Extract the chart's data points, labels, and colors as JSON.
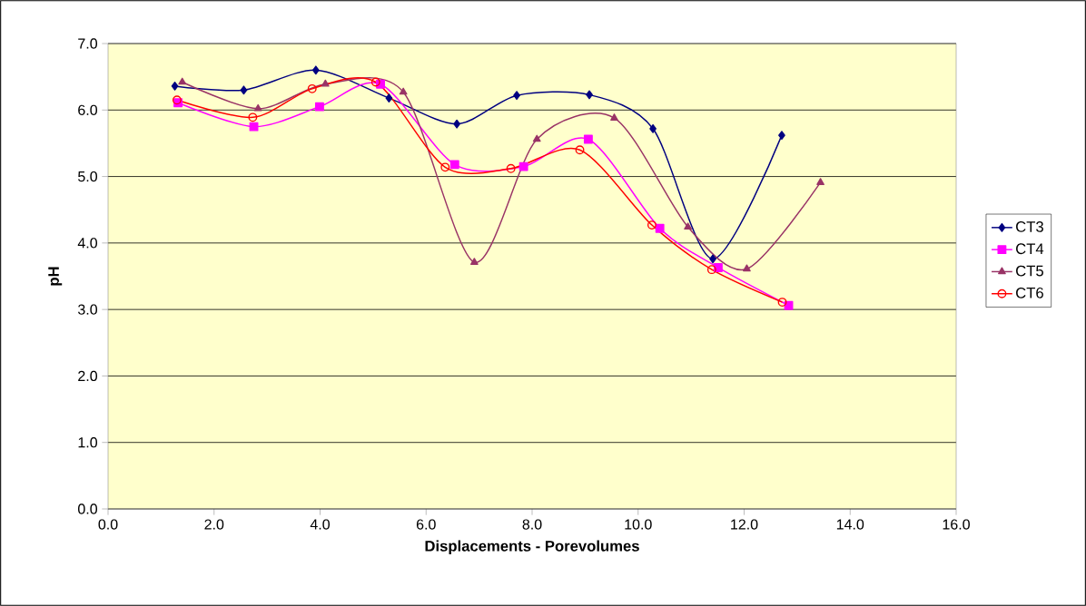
{
  "chart_data": {
    "type": "line",
    "xlabel": "Displacements - Porevolumes",
    "ylabel": "pH",
    "xlim": [
      0,
      16
    ],
    "ylim": [
      0,
      7
    ],
    "xticks": [
      {
        "value": 0,
        "label": "0.0"
      },
      {
        "value": 2,
        "label": "2.0"
      },
      {
        "value": 4,
        "label": "4.0"
      },
      {
        "value": 6,
        "label": "6.0"
      },
      {
        "value": 8,
        "label": "8.0"
      },
      {
        "value": 10,
        "label": "10.0"
      },
      {
        "value": 12,
        "label": "12.0"
      },
      {
        "value": 14,
        "label": "14.0"
      },
      {
        "value": 16,
        "label": "16.0"
      }
    ],
    "yticks": [
      {
        "value": 0,
        "label": "0.0"
      },
      {
        "value": 1,
        "label": "1.0"
      },
      {
        "value": 2,
        "label": "2.0"
      },
      {
        "value": 3,
        "label": "3.0"
      },
      {
        "value": 4,
        "label": "4.0"
      },
      {
        "value": 5,
        "label": "5.0"
      },
      {
        "value": 6,
        "label": "6.0"
      },
      {
        "value": 7,
        "label": "7.0"
      }
    ],
    "grid": "y",
    "legend": "right",
    "line_style": "solid",
    "series": [
      {
        "name": "CT3",
        "color": "#000080",
        "marker": "diamond",
        "x": [
          1.26,
          2.56,
          3.92,
          5.3,
          6.58,
          7.71,
          9.08,
          10.28,
          11.41,
          12.71
        ],
        "values": [
          6.36,
          6.3,
          6.6,
          6.18,
          5.79,
          6.22,
          6.23,
          5.72,
          3.76,
          5.62
        ]
      },
      {
        "name": "CT4",
        "color": "#ff00ff",
        "marker": "square",
        "x": [
          1.32,
          2.75,
          3.99,
          5.14,
          6.54,
          7.84,
          9.06,
          10.41,
          11.51,
          12.84
        ],
        "values": [
          6.11,
          5.75,
          6.05,
          6.39,
          5.18,
          5.15,
          5.56,
          4.22,
          3.63,
          3.06
        ]
      },
      {
        "name": "CT5",
        "color": "#993366",
        "marker": "triangle",
        "x": [
          1.4,
          2.83,
          4.1,
          5.57,
          6.91,
          8.09,
          9.55,
          10.94,
          12.05,
          13.44
        ],
        "values": [
          6.42,
          6.02,
          6.39,
          6.27,
          3.71,
          5.56,
          5.88,
          4.24,
          3.61,
          4.91
        ]
      },
      {
        "name": "CT6",
        "color": "#ff0000",
        "marker": "circle",
        "x": [
          1.3,
          2.73,
          3.85,
          5.05,
          6.36,
          7.6,
          8.9,
          10.26,
          11.39,
          12.72
        ],
        "values": [
          6.15,
          5.89,
          6.32,
          6.42,
          5.14,
          5.12,
          5.4,
          4.27,
          3.6,
          3.11
        ]
      }
    ]
  }
}
